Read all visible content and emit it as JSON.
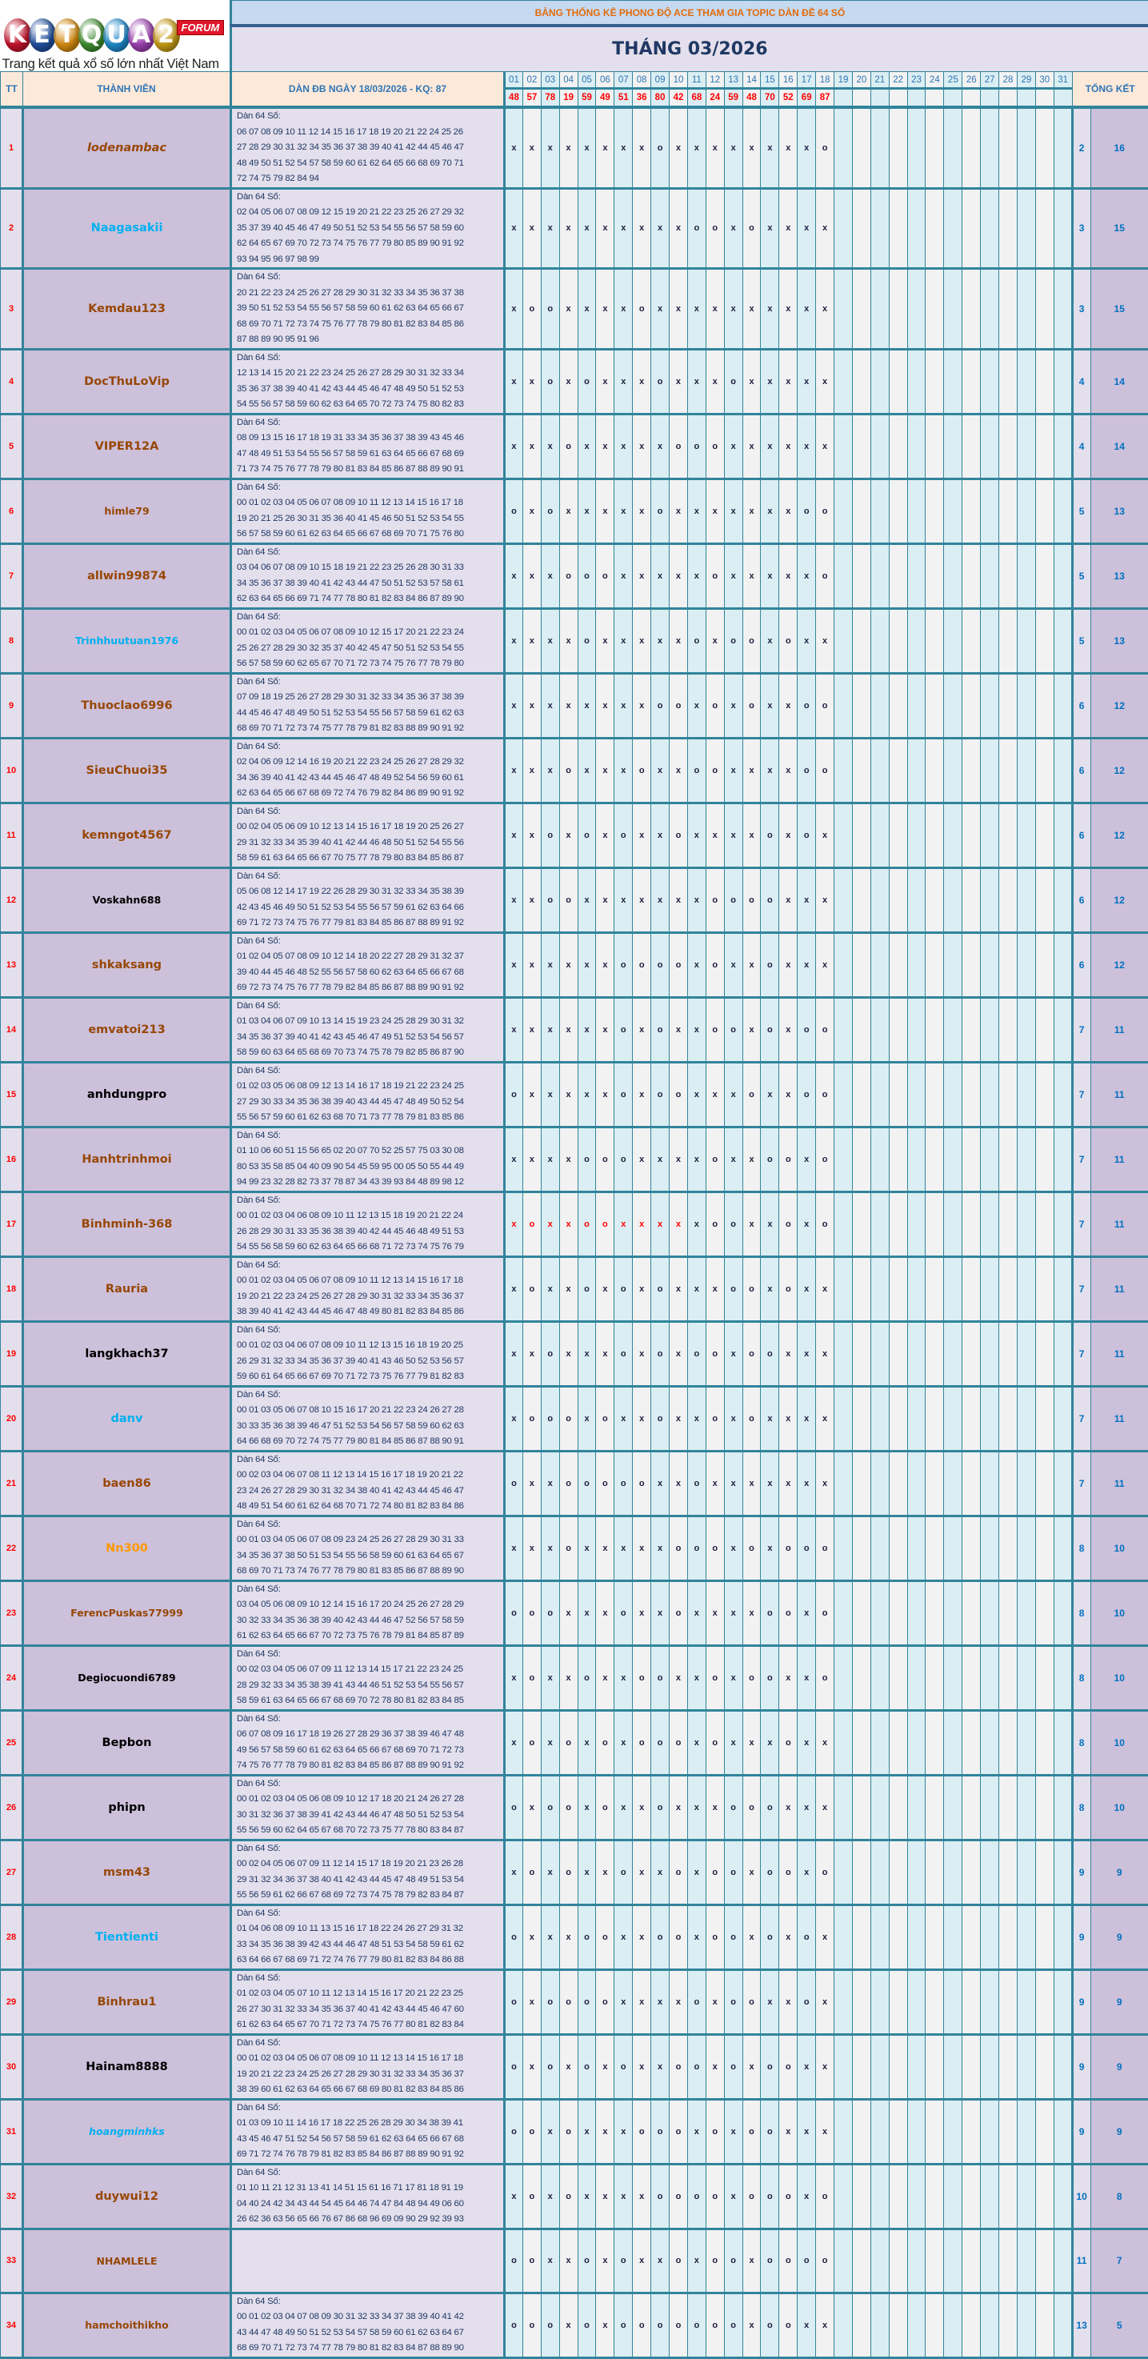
{
  "logo": {
    "letters": [
      "K",
      "E",
      "T",
      "Q",
      "U",
      "A",
      "2"
    ],
    "letter_colors": [
      "#c0142a",
      "#1f4e9c",
      "#d18a10",
      "#3d8b2f",
      "#1e88c7",
      "#9a3fae",
      "#c49a16"
    ],
    "badge": "FORUM",
    "tagline": "Trang kết quả xổ số lớn nhất Việt Nam"
  },
  "header": {
    "title": "BẢNG THỐNG KÊ PHONG ĐỘ ACE THAM GIA TOPIC DÀN ĐỀ 64 SỐ",
    "month": "THÁNG 03/2026",
    "col_tt": "TT",
    "col_member": "THÀNH VIÊN",
    "col_dan": "DÀN ĐB NGÀY 18/03/2026 - KQ: 87",
    "col_total": "TỔNG KẾT",
    "days": [
      "01",
      "02",
      "03",
      "04",
      "05",
      "06",
      "07",
      "08",
      "09",
      "10",
      "11",
      "12",
      "13",
      "14",
      "15",
      "16",
      "17",
      "18",
      "19",
      "20",
      "21",
      "22",
      "23",
      "24",
      "25",
      "26",
      "27",
      "28",
      "29",
      "30",
      "31"
    ],
    "results": [
      "48",
      "57",
      "78",
      "19",
      "59",
      "49",
      "51",
      "36",
      "80",
      "42",
      "68",
      "24",
      "59",
      "48",
      "70",
      "52",
      "69",
      "87"
    ]
  },
  "dan_label": "Dàn 64 Số:",
  "colors": {
    "brown": "#974706",
    "blue": "#00b0f0",
    "black": "#000000",
    "orange": "#ff9900",
    "mark_red": "#ff0000"
  },
  "members": [
    {
      "tt": "1",
      "name": "lodenambac",
      "color": "#974706",
      "italic": true,
      "lines": [
        "06 07 08 09 10 11 12 14 15 16 17 18 19 20 21 22 24 25 26",
        "27 28 29 30 31 32 34 35 36 37 38 39 40 41 42 44 45 46 47",
        "48 49 50 51 52 54 57 58 59 60 61 62 64 65 66 68 69 70 71",
        "72 74 75 79 82 84 94"
      ],
      "marks": "xxxxxxxxoxxxxxxxxo",
      "miss": "2",
      "total": "16"
    },
    {
      "tt": "2",
      "name": "Naagasakii",
      "color": "#00b0f0",
      "lines": [
        "02 04 05 06 07 08 09 12 15 19 20 21 22 23 25 26 27 29 32",
        "35 37 39 40 45 46 47 49 50 51 52 53 54 55 56 57 58 59 60",
        "62 64 65 67 69 70 72 73 74 75 76 77 79 80 85 89 90 91 92",
        "93 94 95 96 97 98 99"
      ],
      "marks": "xxxxxxxxxxooxoxxxx",
      "miss": "3",
      "total": "15"
    },
    {
      "tt": "3",
      "name": "Kemdau123",
      "color": "#974706",
      "lines": [
        "20 21 22 23 24 25 26 27 28 29 30 31 32 33 34 35 36 37 38",
        "39 50 51 52 53 54 55 56 57 58 59 60 61 62 63 64 65 66 67",
        "68 69 70 71 72 73 74 75 76 77 78 79 80 81 82 83 84 85 86",
        "87 88 89 90 95 91 96"
      ],
      "marks": "xooxxxxoxxxxxxxxxx",
      "miss": "3",
      "total": "15"
    },
    {
      "tt": "4",
      "name": "DocThuLoVip",
      "color": "#974706",
      "lines": [
        "12 13 14 15 20 21 22 23 24 25 26 27 28 29 30 31 32 33 34",
        "35 36 37 38 39 40 41 42 43 44 45 46 47 48 49 50 51 52 53",
        "54 55 56 57 58 59 60 62 63 64 65 70 72 73 74 75 80 82 83"
      ],
      "marks": "xxoxoxxxoxxxoxxxxx",
      "miss": "4",
      "total": "14"
    },
    {
      "tt": "5",
      "name": "VIPER12A",
      "color": "#974706",
      "lines": [
        "08 09 13 15 16 17 18 19 31 33 34 35 36 37 38 39 43 45 46",
        "47 48 49 51 53 54 55 56 57 58 59 61 63 64 65 66 67 68 69",
        "71 73 74 75 76 77 78 79 80 81 83 84 85 86 87 88 89 90 91"
      ],
      "marks": "xxxoxxxxxoooxxxxxx",
      "miss": "4",
      "total": "14"
    },
    {
      "tt": "6",
      "name": "himle79",
      "color": "#974706",
      "lines": [
        "00 01 02 03 04 05 06 07 08 09 10 11 12 13 14 15 16 17 18",
        "19 20 21 25 26 30 31 35 36 40 41 45 46 50 51 52 53 54 55",
        "56 57 58 59 60 61 62 63 64 65 66 67 68 69 70 71 75 76 80"
      ],
      "marks": "oxoxxxxxoxxxxxxxoo",
      "miss": "5",
      "total": "13"
    },
    {
      "tt": "7",
      "name": "allwin99874",
      "color": "#974706",
      "lines": [
        "03 04 06 07 08 09 10 15 18 19 21 22 23 25 26 28 30 31 33",
        "34 35 36 37 38 39 40 41 42 43 44 47 50 51 52 53 57 58 61",
        "62 63 64 65 66 69 71 74 77 78 80 81 82 83 84 86 87 89 90"
      ],
      "marks": "xxxoooxxxxxoxxxxxo",
      "miss": "5",
      "total": "13"
    },
    {
      "tt": "8",
      "name": "Trinhhuutuan1976",
      "color": "#00b0f0",
      "lines": [
        "00 01 02 03 04 05 06 07 08 09 10 12 15 17 20 21 22 23 24",
        "25 26 27 28 29 30 32 35 37 40 42 45 47 50 51 52 53 54 55",
        "56 57 58 59 60 62 65 67 70 71 72 73 74 75 76 77 78 79 80"
      ],
      "marks": "xxxxoxxxxxoxooxoxx",
      "miss": "5",
      "total": "13"
    },
    {
      "tt": "9",
      "name": "Thuoclao6996",
      "color": "#974706",
      "lines": [
        "07 09 18 19 25 26 27 28 29 30 31 32 33 34 35 36 37 38 39",
        "44 45 46 47 48 49 50 51 52 53 54 55 56 57 58 59 61 62 63",
        "68 69 70 71 72 73 74 75 77 78 79 81 82 83 88 89 90 91 92"
      ],
      "marks": "xxxxxxxxooxoxoxxoo",
      "miss": "6",
      "total": "12"
    },
    {
      "tt": "10",
      "name": "SieuChuoi35",
      "color": "#974706",
      "lines": [
        "02 04 06 09 12 14 16 19 20 21 22 23 24 25 26 27 28 29 32",
        "34 36 39 40 41 42 43 44 45 46 47 48 49 52 54 56 59 60 61",
        "62 63 64 65 66 67 68 69 72 74 76 79 82 84 86 89 90 91 92"
      ],
      "marks": "xxxoxxxoxxooxxxxoo",
      "miss": "6",
      "total": "12"
    },
    {
      "tt": "11",
      "name": "kemngot4567",
      "color": "#974706",
      "lines": [
        "00 02 04 05 06 09 10 12 13 14 15 16 17 18 19 20 25 26 27",
        "29 31 32 33 34 35 39 40 41 42 44 46 48 50 51 52 54 55 56",
        "58 59 61 63 64 65 66 67 70 75 77 78 79 80 83 84 85 86 87"
      ],
      "marks": "xxoxoxoxxoxxxxoxox",
      "miss": "6",
      "total": "12"
    },
    {
      "tt": "12",
      "name": "Voskahn688",
      "color": "#000000",
      "lines": [
        "05 06 08 12 14 17 19 22 26 28 29 30 31 32 33 34 35 38 39",
        "42 43 45 46 49 50 51 52 53 54 55 56 57 59 61 62 63 64 66",
        "69 71 72 73 74 75 76 77 79 81 83 84 85 86 87 88 89 91 92"
      ],
      "marks": "xxooxxxxxxxooooxxx",
      "miss": "6",
      "total": "12"
    },
    {
      "tt": "13",
      "name": "shkaksang",
      "color": "#974706",
      "lines": [
        "01 02 04 05 07 08 09 10 12 14 18 20 22 27 28 29 31 32 37",
        "39 40 44 45 46 48 52 55 56 57 58 60 62 63 64 65 66 67 68",
        "69 72 73 74 75 76 77 78 79 82 84 85 86 87 88 89 90 91 92"
      ],
      "marks": "xxxxxxooooxoxxoxxx",
      "miss": "6",
      "total": "12"
    },
    {
      "tt": "14",
      "name": "emvatoi213",
      "color": "#974706",
      "lines": [
        "01 03 04 06 07 09 10 13 14 15 19 23 24 25 28 29 30 31 32",
        "34 35 36 37 39 40 41 42 43 45 46 47 49 51 52 53 54 56 57",
        "58 59 60 63 64 65 68 69 70 73 74 75 78 79 82 85 86 87 90"
      ],
      "marks": "xxxxxxoxoxxooxoxoo",
      "miss": "7",
      "total": "11"
    },
    {
      "tt": "15",
      "name": "anhdungpro",
      "color": "#000000",
      "lines": [
        "01 02 03 05 06 08 09 12 13 14 16 17 18 19 21 22 23 24 25",
        "27 29 30 33 34 35 36 38 39 40 43 44 45 47 48 49 50 52 54",
        "55 56 57 59 60 61 62 63 68 70 71 73 77 78 79 81 83 85 86"
      ],
      "marks": "oxxxxxoxooxxxoxxoo",
      "miss": "7",
      "total": "11"
    },
    {
      "tt": "16",
      "name": "Hanhtrinhmoi",
      "color": "#974706",
      "lines": [
        "01 10 06 60 51 15 56 65 02 20 07 70 52 25 57 75 03 30 08",
        "80 53 35 58 85 04 40 09 90 54 45 59 95 00 05 50 55 44 49",
        "94 99 23 32 28 82 73 37 78 87 34 43 39 93 84 48 89 98 12"
      ],
      "marks": "xxxxoooxxxxoxxooxo",
      "miss": "7",
      "total": "11"
    },
    {
      "tt": "17",
      "name": "Binhminh-368",
      "color": "#974706",
      "red_through_day": 10,
      "lines": [
        "00 01 02 03 04 06 08 09 10 11 12 13 15 18 19 20 21 22 24",
        "26 28 29 30 31 33 35 36 38 39 40 42 44 45 46 48 49 51 53",
        "54 55 56 58 59 60 62 63 64 65 66 68 71 72 73 74 75 76 79"
      ],
      "marks": "xoxxooxxxxxooxxoxo",
      "miss": "7",
      "total": "11"
    },
    {
      "tt": "18",
      "name": "Rauria",
      "color": "#974706",
      "lines": [
        "00 01 02 03 04 05 06 07 08 09 10 11 12 13 14 15 16 17 18",
        "19 20 21 22 23 24 25 26 27 28 29 30 31 32 33 34 35 36 37",
        "38 39 40 41 42 43 44 45 46 47 48 49 80 81 82 83 84 85 86"
      ],
      "marks": "xoxxoxoxoxxxooxoxx",
      "miss": "7",
      "total": "11"
    },
    {
      "tt": "19",
      "name": "langkhach37",
      "color": "#000000",
      "lines": [
        "00 01 02 03 04 06 07 08 09 10 11 12 13 15 16 18 19 20 25",
        "26 29 31 32 33 34 35 36 37 39 40 41 43 46 50 52 53 56 57",
        "59 60 61 64 65 66 67 69 70 71 72 73 75 76 77 79 81 82 83"
      ],
      "marks": "xxoxxxoxoxooxooxxx",
      "miss": "7",
      "total": "11"
    },
    {
      "tt": "20",
      "name": "danv",
      "color": "#00b0f0",
      "lines": [
        "00 01 03 05 06 07 08 10 15 16 17 20 21 22 23 24 26 27 28",
        "30 33 35 36 38 39 46 47 51 52 53 54 56 57 58 59 60 62 63",
        "64 66 68 69 70 72 74 75 77 79 80 81 84 85 86 87 88 90 91"
      ],
      "marks": "xoooxoxxoxxoxoxxxx",
      "miss": "7",
      "total": "11"
    },
    {
      "tt": "21",
      "name": "baen86",
      "color": "#974706",
      "lines": [
        "00 02 03 04 06 07 08 11 12 13 14 15 16 17 18 19 20 21 22",
        "23 24 26 27 28 29 30 31 32 34 38 40 41 42 43 44 45 46 47",
        "48 49 51 54 60 61 62 64 68 70 71 72 74 80 81 82 83 84 86"
      ],
      "marks": "oxxoooooxxoxxxxxxx",
      "miss": "7",
      "total": "11"
    },
    {
      "tt": "22",
      "name": "Nn300",
      "color": "#ff9900",
      "lines": [
        "00 01 03 04 05 06 07 08 09 23 24 25 26 27 28 29 30 31 33",
        "34 35 36 37 38 50 51 53 54 55 56 58 59 60 61 63 64 65 67",
        "68 69 70 71 73 74 76 77 78 79 80 81 83 85 86 87 88 89 90"
      ],
      "marks": "xxxoxxxxxoooxoxooo",
      "miss": "8",
      "total": "10"
    },
    {
      "tt": "23",
      "name": "FerencPuskas77999",
      "color": "#974706",
      "lines": [
        "03 04 05 06 08 09 10 12 14 15 16 17 20 24 25 26 27 28 29",
        "30 32 33 34 35 36 38 39 40 42 43 44 46 47 52 56 57 58 59",
        "61 62 63 64 65 66 67 70 72 73 75 76 78 79 81 84 85 87 89"
      ],
      "marks": "oooxxxoxxoxxxxooxo",
      "miss": "8",
      "total": "10"
    },
    {
      "tt": "24",
      "name": "Degiocuondi6789",
      "color": "#000000",
      "lines": [
        "00 02 03 04 05 06 07 09 11 12 13 14 15 17 21 22 23 24 25",
        "28 29 32 33 34 35 38 39 41 43 44 46 51 52 53 54 55 56 57",
        "58 59 61 63 64 65 66 67 68 69 70 72 78 80 81 82 83 84 85"
      ],
      "marks": "xoxxoxxooxxoxooxxo",
      "miss": "8",
      "total": "10"
    },
    {
      "tt": "25",
      "name": "Bepbon",
      "color": "#000000",
      "lines": [
        "06 07 08 09 16 17 18 19 26 27 28 29 36 37 38 39 46 47 48",
        "49 56 57 58 59 60 61 62 63 64 65 66 67 68 69 70 71 72 73",
        "74 75 76 77 78 79 80 81 82 83 84 85 86 87 88 89 90 91 92"
      ],
      "marks": "xoxoxoxoooxoxxxoxx",
      "miss": "8",
      "total": "10"
    },
    {
      "tt": "26",
      "name": "phipn",
      "color": "#000000",
      "lines": [
        "00 01 02 03 04 05 06 08 09 10 12 17 18 20 21 24 26 27 28",
        "30 31 32 36 37 38 39 41 42 43 44 46 47 48 50 51 52 53 54",
        "55 56 59 60 62 64 65 67 68 70 72 73 75 77 78 80 83 84 87"
      ],
      "marks": "oxooxoxxoxxxoooxxx",
      "miss": "8",
      "total": "10"
    },
    {
      "tt": "27",
      "name": "msm43",
      "color": "#974706",
      "lines": [
        "00 02 04 05 06 07 09 11 12 14 15 17 18 19 20 21 23 26 28",
        "29 31 32 34 36 37 38 40 41 42 43 44 45 47 48 49 51 53 54",
        "55 56 59 61 62 66 67 68 69 72 73 74 75 78 79 82 83 84 87"
      ],
      "marks": "xoxoxxoxxoxooxooxo",
      "miss": "9",
      "total": "9"
    },
    {
      "tt": "28",
      "name": "Tientienti",
      "color": "#00b0f0",
      "lines": [
        "01 04 06 08 09 10 11 13 15 16 17 18 22 24 26 27 29 31 32",
        "33 34 35 36 38 39 42 43 44 46 47 48 51 53 54 58 59 61 62",
        "63 64 66 67 68 69 71 72 74 76 77 79 80 81 82 83 84 86 88"
      ],
      "marks": "oxxxooxxooxooxoxox",
      "miss": "9",
      "total": "9"
    },
    {
      "tt": "29",
      "name": "Binhrau1",
      "color": "#974706",
      "lines": [
        "01 02 03 04 05 07 10 11 12 13 14 15 16 17 20 21 22 23 25",
        "26 27 30 31 32 33 34 35 36 37 40 41 42 43 44 45 46 47 60",
        "61 62 63 64 65 67 70 71 72 73 74 75 76 77 80 81 82 83 84"
      ],
      "marks": "oxooooxxxxoxooxxox",
      "miss": "9",
      "total": "9"
    },
    {
      "tt": "30",
      "name": "Hainam8888",
      "color": "#000000",
      "lines": [
        "00 01 02 03 04 05 06 07 08 09 10 11 12 13 14 15 16 17 18",
        "19 20 21 22 23 24 25 26 27 28 29 30 31 32 33 34 35 36 37",
        "38 39 60 61 62 63 64 65 66 67 68 69 80 81 82 83 84 85 86"
      ],
      "marks": "oxoxoxoxxooxoxooxx",
      "miss": "9",
      "total": "9"
    },
    {
      "tt": "31",
      "name": "hoangminhks",
      "color": "#00b0f0",
      "italic": true,
      "lines": [
        "01 03 09 10 11 14 16 17 18 22 25 26 28 29 30 34 38 39 41",
        "43 45 46 47 51 52 54 56 57 58 59 61 62 63 64 65 66 67 68",
        "69 71 72 74 76 78 79 81 82 83 85 84 86 87 88 89 90 91 92"
      ],
      "marks": "ooxoxxxoooxoxooxxx",
      "miss": "9",
      "total": "9"
    },
    {
      "tt": "32",
      "name": "duywui12",
      "color": "#974706",
      "lines": [
        "01 10 11 21 12 31 13 41 14 51 15 61 16 71 17 81 18 91 19",
        "04 40 24 42 34 43 44 54 45 64 46 74 47 84 48 94 49 06 60",
        "26 62 36 63 56 65 66 76 67 86 68 96 69 09 90 29 92 39 93"
      ],
      "marks": "xoxoxxxxooooxoooxo",
      "miss": "10",
      "total": "8"
    },
    {
      "tt": "33",
      "name": "NHAMLELE",
      "color": "#974706",
      "empty": true,
      "lines": [],
      "marks": "ooxxoxoxxoxooxoooo",
      "miss": "11",
      "total": "7"
    },
    {
      "tt": "34",
      "name": "hamchoithikho",
      "color": "#974706",
      "lines": [
        "00 01 02 03 04 07 08 09 30 31 32 33 34 37 38 39 40 41 42",
        "43 44 47 48 49 50 51 52 53 54 57 58 59 60 61 62 63 64 67",
        "68 69 70 71 72 73 74 77 78 79 80 81 82 83 84 87 88 89 90"
      ],
      "marks": "oooxoxooooooox ooxx",
      "miss": "13",
      "total": "5"
    }
  ]
}
